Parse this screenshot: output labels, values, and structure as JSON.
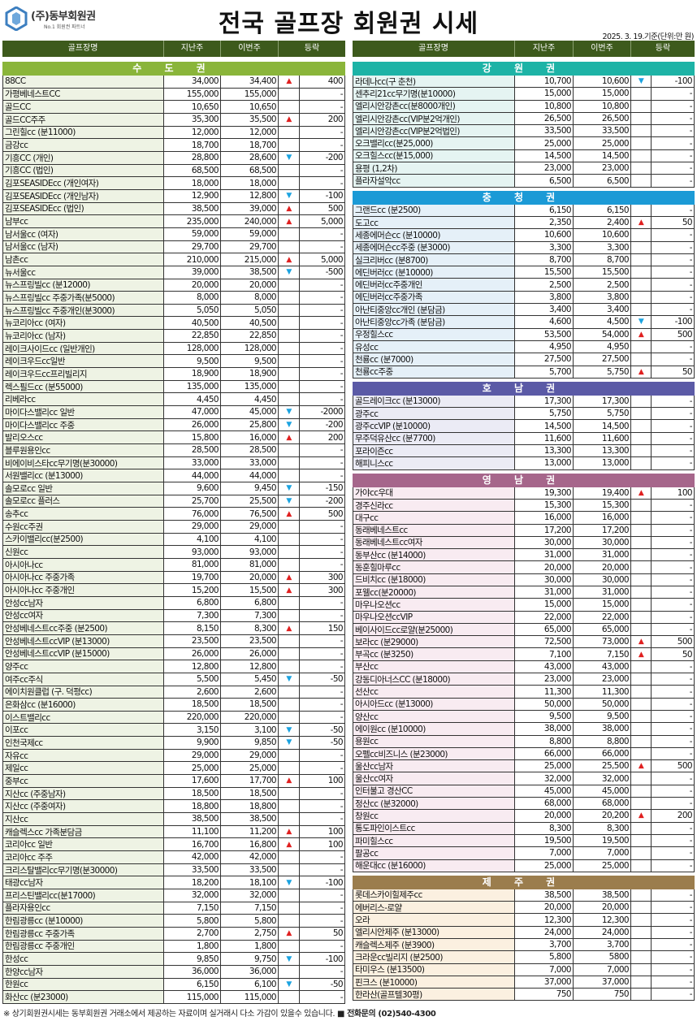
{
  "header": {
    "logo_name": "(주)동부회원권",
    "logo_tagline": "No.1 회원권 파트너",
    "title": "전국 골프장 회원권 시세",
    "date_note": "2025. 3. 19.기준(단위:만 원)"
  },
  "columns": [
    "골프장명",
    "지난주",
    "이번주",
    "등락"
  ],
  "colors": {
    "header": "#3d5a1c",
    "up": "#e02020",
    "down": "#1ba3e0"
  },
  "left_sections": [
    {
      "title": "수 도 권",
      "color": "#8ab53a",
      "name_bg": "#eef3e4",
      "rows": [
        [
          "88CC",
          "34,000",
          "34,400",
          "up",
          "400"
        ],
        [
          "가평베네스트CC",
          "155,000",
          "155,000",
          "",
          "-"
        ],
        [
          "골드CC",
          "10,650",
          "10,650",
          "",
          "-"
        ],
        [
          "골드CC주주",
          "35,300",
          "35,500",
          "up",
          "200"
        ],
        [
          "그린힐cc (분11000)",
          "12,000",
          "12,000",
          "",
          "-"
        ],
        [
          "금강cc",
          "18,700",
          "18,700",
          "",
          "-"
        ],
        [
          "기흥CC (개인)",
          "28,800",
          "28,600",
          "down",
          "-200"
        ],
        [
          "기흥CC (법인)",
          "68,500",
          "68,500",
          "",
          "-"
        ],
        [
          "김포SEASIDEcc (개인여자)",
          "18,000",
          "18,000",
          "",
          "-"
        ],
        [
          "김포SEASIDEcc (개인남자)",
          "12,900",
          "12,800",
          "down",
          "-100"
        ],
        [
          "김포SEASIDEcc (법인)",
          "38,500",
          "39,000",
          "up",
          "500"
        ],
        [
          "남부cc",
          "235,000",
          "240,000",
          "up",
          "5,000"
        ],
        [
          "남서울cc (여자)",
          "59,000",
          "59,000",
          "",
          "-"
        ],
        [
          "남서울cc (남자)",
          "29,700",
          "29,700",
          "",
          "-"
        ],
        [
          "남촌cc",
          "210,000",
          "215,000",
          "up",
          "5,000"
        ],
        [
          "뉴서울cc",
          "39,000",
          "38,500",
          "down",
          "-500"
        ],
        [
          "뉴스프링빌cc (분12000)",
          "20,000",
          "20,000",
          "",
          "-"
        ],
        [
          "뉴스프링빌cc 주중가족(분5000)",
          "8,000",
          "8,000",
          "",
          "-"
        ],
        [
          "뉴스프링빌cc 주중개인(분3000)",
          "5,050",
          "5,050",
          "",
          "-"
        ],
        [
          "뉴코리아cc (여자)",
          "40,500",
          "40,500",
          "",
          "-"
        ],
        [
          "뉴코리아cc (남자)",
          "22,850",
          "22,850",
          "",
          "-"
        ],
        [
          "레이크사이드cc (일반개인)",
          "128,000",
          "128,000",
          "",
          "-"
        ],
        [
          "레이크우드cc일반",
          "9,500",
          "9,500",
          "",
          "-"
        ],
        [
          "레이크우드cc프리빌리지",
          "18,900",
          "18,900",
          "",
          "-"
        ],
        [
          "렉스필드cc (분55000)",
          "135,000",
          "135,000",
          "",
          "-"
        ],
        [
          "리베라cc",
          "4,450",
          "4,450",
          "",
          "-"
        ],
        [
          "마이다스밸리cc 일반",
          "47,000",
          "45,000",
          "down",
          "-2000"
        ],
        [
          "마이다스밸리cc 주중",
          "26,000",
          "25,800",
          "down",
          "-200"
        ],
        [
          "발리오스cc",
          "15,800",
          "16,000",
          "up",
          "200"
        ],
        [
          "블루원용인cc",
          "28,500",
          "28,500",
          "",
          "-"
        ],
        [
          "비에이비스타cc무기명(분30000)",
          "33,000",
          "33,000",
          "",
          "-"
        ],
        [
          "서원밸리cc (분13000)",
          "44,000",
          "44,000",
          "",
          "-"
        ],
        [
          "솔모로cc 일반",
          "9,600",
          "9,450",
          "down",
          "-150"
        ],
        [
          "솔모로cc 플러스",
          "25,700",
          "25,500",
          "down",
          "-200"
        ],
        [
          "송추cc",
          "76,000",
          "76,500",
          "up",
          "500"
        ],
        [
          "수원cc주권",
          "29,000",
          "29,000",
          "",
          "-"
        ],
        [
          "스카이밸리cc(분2500)",
          "4,100",
          "4,100",
          "",
          "-"
        ],
        [
          "신원cc",
          "93,000",
          "93,000",
          "",
          "-"
        ],
        [
          "아시아나cc",
          "81,000",
          "81,000",
          "",
          "-"
        ],
        [
          "아시아나cc 주중가족",
          "19,700",
          "20,000",
          "up",
          "300"
        ],
        [
          "아시아나cc 주중개인",
          "15,200",
          "15,500",
          "up",
          "300"
        ],
        [
          "안성cc남자",
          "6,800",
          "6,800",
          "",
          "-"
        ],
        [
          "안성cc여자",
          "7,300",
          "7,300",
          "",
          "-"
        ],
        [
          "안성베네스트cc주중 (분2500)",
          "8,150",
          "8,300",
          "up",
          "150"
        ],
        [
          "안성베네스트ccVIP (분13000)",
          "23,500",
          "23,500",
          "",
          "-"
        ],
        [
          "안성베네스트ccVIP (분15000)",
          "26,000",
          "26,000",
          "",
          "-"
        ],
        [
          "양주cc",
          "12,800",
          "12,800",
          "",
          "-"
        ],
        [
          "여주cc주식",
          "5,500",
          "5,450",
          "down",
          "-50"
        ],
        [
          "에이치원클럽 (구. 덕평cc)",
          "2,600",
          "2,600",
          "",
          "-"
        ],
        [
          "은화삼cc (분16000)",
          "18,500",
          "18,500",
          "",
          "-"
        ],
        [
          "이스트밸리cc",
          "220,000",
          "220,000",
          "",
          "-"
        ],
        [
          "이포cc",
          "3,150",
          "3,100",
          "down",
          "-50"
        ],
        [
          "인천국제cc",
          "9,900",
          "9,850",
          "down",
          "-50"
        ],
        [
          "자유cc",
          "29,000",
          "29,000",
          "",
          "-"
        ],
        [
          "제일cc",
          "25,000",
          "25,000",
          "",
          "-"
        ],
        [
          "중부cc",
          "17,600",
          "17,700",
          "up",
          "100"
        ],
        [
          "지산cc (주중남자)",
          "18,500",
          "18,500",
          "",
          "-"
        ],
        [
          "지산cc (주중여자)",
          "18,800",
          "18,800",
          "",
          "-"
        ],
        [
          "지산cc",
          "38,500",
          "38,500",
          "",
          "-"
        ],
        [
          "캐슬렉스cc 가족분담금",
          "11,100",
          "11,200",
          "up",
          "100"
        ],
        [
          "코리아cc 일반",
          "16,700",
          "16,800",
          "up",
          "100"
        ],
        [
          "코리아cc 주주",
          "42,000",
          "42,000",
          "",
          "-"
        ],
        [
          "크리스탈밸리cc무기명(분30000)",
          "33,500",
          "33,500",
          "",
          "-"
        ],
        [
          "태광cc남자",
          "18,200",
          "18,100",
          "down",
          "-100"
        ],
        [
          "프리스틴밸리cc(분17000)",
          "32,000",
          "32,000",
          "",
          "-"
        ],
        [
          "플라자용인cc",
          "7,150",
          "7,150",
          "",
          "-"
        ],
        [
          "한림광릉cc (분10000)",
          "5,800",
          "5,800",
          "",
          "-"
        ],
        [
          "한림광릉cc 주중가족",
          "2,700",
          "2,750",
          "up",
          "50"
        ],
        [
          "한림광릉cc 주중개인",
          "1,800",
          "1,800",
          "",
          "-"
        ],
        [
          "한성cc",
          "9,850",
          "9,750",
          "down",
          "-100"
        ],
        [
          "한양cc남자",
          "36,000",
          "36,000",
          "",
          "-"
        ],
        [
          "한원cc",
          "6,150",
          "6,100",
          "down",
          "-50"
        ],
        [
          "화산cc (분23000)",
          "115,000",
          "115,000",
          "",
          "-"
        ]
      ]
    }
  ],
  "right_sections": [
    {
      "title": "강 원 권",
      "color": "#1db3a6",
      "name_bg": "#e5f4f2",
      "rows": [
        [
          "라데나cc(구 춘천)",
          "10,700",
          "10,600",
          "down",
          "-100"
        ],
        [
          "센추리21cc무기명(분10000)",
          "15,000",
          "15,000",
          "",
          "-"
        ],
        [
          "엘리시안강촌cc(분8000개인)",
          "10,800",
          "10,800",
          "",
          "-"
        ],
        [
          "엘리시안강촌cc(VIP분2억개인)",
          "26,500",
          "26,500",
          "",
          "-"
        ],
        [
          "엘리시안강촌cc(VIP분2억법인)",
          "33,500",
          "33,500",
          "",
          "-"
        ],
        [
          "오크밸리cc(분25,000)",
          "25,000",
          "25,000",
          "",
          "-"
        ],
        [
          "오크힐스cc(분15,000)",
          "14,500",
          "14,500",
          "",
          "-"
        ],
        [
          "용평 (1,2차)",
          "23,000",
          "23,000",
          "",
          "-"
        ],
        [
          "플라자설악cc",
          "6,500",
          "6,500",
          "",
          "-"
        ]
      ]
    },
    {
      "title": "충 청 권",
      "color": "#1b9ad6",
      "name_bg": "#e5f0f8",
      "rows": [
        [
          "그랜드cc (분2500)",
          "6,150",
          "6,150",
          "",
          "-"
        ],
        [
          "도고cc",
          "2,350",
          "2,400",
          "up",
          "50"
        ],
        [
          "세종에머슨cc (분10000)",
          "10,600",
          "10,600",
          "",
          "-"
        ],
        [
          "세종에머슨cc주중 (분3000)",
          "3,300",
          "3,300",
          "",
          "-"
        ],
        [
          "실크리버cc (분8700)",
          "8,700",
          "8,700",
          "",
          "-"
        ],
        [
          "에딘버러cc (분10000)",
          "15,500",
          "15,500",
          "",
          "-"
        ],
        [
          "에딘버러cc주중개인",
          "2,500",
          "2,500",
          "",
          "-"
        ],
        [
          "에딘버러cc주중가족",
          "3,800",
          "3,800",
          "",
          "-"
        ],
        [
          "아난티중앙cc개인 (분담금)",
          "3,400",
          "3,400",
          "",
          "-"
        ],
        [
          "아난티중앙cc가족 (분담금)",
          "4,600",
          "4,500",
          "down",
          "-100"
        ],
        [
          "우정힐스cc",
          "53,500",
          "54,000",
          "up",
          "500"
        ],
        [
          "유성cc",
          "4,950",
          "4,950",
          "",
          "-"
        ],
        [
          "천룡cc (분7000)",
          "27,500",
          "27,500",
          "",
          "-"
        ],
        [
          "천룡cc주중",
          "5,700",
          "5,750",
          "up",
          "50"
        ]
      ]
    },
    {
      "title": "호 남 권",
      "color": "#5b5aa6",
      "name_bg": "#ebebf5",
      "rows": [
        [
          "골드레이크cc (분13000)",
          "17,300",
          "17,300",
          "",
          "-"
        ],
        [
          "광주cc",
          "5,750",
          "5,750",
          "",
          "-"
        ],
        [
          "광주ccVIP (분10000)",
          "14,500",
          "14,500",
          "",
          "-"
        ],
        [
          "무주덕유산cc (분7700)",
          "11,600",
          "11,600",
          "",
          "-"
        ],
        [
          "포라이즌cc",
          "13,300",
          "13,300",
          "",
          "-"
        ],
        [
          "해피니스cc",
          "13,000",
          "13,000",
          "",
          "-"
        ]
      ]
    },
    {
      "title": "영 남 권",
      "color": "#a6668b",
      "name_bg": "#f8ebf1",
      "rows": [
        [
          "가야cc우대",
          "19,300",
          "19,400",
          "up",
          "100"
        ],
        [
          "경주신라cc",
          "15,300",
          "15,300",
          "",
          "-"
        ],
        [
          "대구cc",
          "16,000",
          "16,000",
          "",
          "-"
        ],
        [
          "동래베네스트cc",
          "17,200",
          "17,200",
          "",
          "-"
        ],
        [
          "동래베네스트cc여자",
          "30,000",
          "30,000",
          "",
          "-"
        ],
        [
          "동부산cc (분14000)",
          "31,000",
          "31,000",
          "",
          "-"
        ],
        [
          "동훈힐마루cc",
          "20,000",
          "20,000",
          "",
          "-"
        ],
        [
          "드비치cc (분18000)",
          "30,000",
          "30,000",
          "",
          "-"
        ],
        [
          "포웰cc(분20000)",
          "31,000",
          "31,000",
          "",
          "-"
        ],
        [
          "마우나오션cc",
          "15,000",
          "15,000",
          "",
          "-"
        ],
        [
          "마우나오션ccVIP",
          "22,000",
          "22,000",
          "",
          "-"
        ],
        [
          "베이사이드cc로얄(분25000)",
          "65,000",
          "65,000",
          "",
          "-"
        ],
        [
          "보라cc (분29000)",
          "72,500",
          "73,000",
          "up",
          "500"
        ],
        [
          "부곡cc (분3250)",
          "7,100",
          "7,150",
          "up",
          "50"
        ],
        [
          "부산cc",
          "43,000",
          "43,000",
          "",
          "-"
        ],
        [
          "강동디아너스CC (분18000)",
          "23,000",
          "23,000",
          "",
          "-"
        ],
        [
          "선산cc",
          "11,300",
          "11,300",
          "",
          "-"
        ],
        [
          "아시아드cc (분13000)",
          "50,000",
          "50,000",
          "",
          "-"
        ],
        [
          "양산cc",
          "9,500",
          "9,500",
          "",
          "-"
        ],
        [
          "에이원cc (분10000)",
          "38,000",
          "38,000",
          "",
          "-"
        ],
        [
          "용원cc",
          "8,800",
          "8,800",
          "",
          "-"
        ],
        [
          "오펠cc비즈니스 (분23000)",
          "66,000",
          "66,000",
          "",
          "-"
        ],
        [
          "울산cc남자",
          "25,000",
          "25,500",
          "up",
          "500"
        ],
        [
          "울산cc여자",
          "32,000",
          "32,000",
          "",
          "-"
        ],
        [
          "인터불고 경산CC",
          "45,000",
          "45,000",
          "",
          "-"
        ],
        [
          "정산cc (분32000)",
          "68,000",
          "68,000",
          "",
          "-"
        ],
        [
          "창원cc",
          "20,000",
          "20,200",
          "up",
          "200"
        ],
        [
          "통도파인이스트cc",
          "8,300",
          "8,300",
          "",
          "-"
        ],
        [
          "파미힐스cc",
          "19,500",
          "19,500",
          "",
          "-"
        ],
        [
          "팔공cc",
          "7,000",
          "7,000",
          "",
          "-"
        ],
        [
          "해운대cc (분16000)",
          "25,000",
          "25,000",
          "",
          "-"
        ]
      ]
    },
    {
      "title": "제 주 권",
      "color": "#9b7d4d",
      "name_bg": "#fbf0e0",
      "rows": [
        [
          "롯데스카이힐제주cc",
          "38,500",
          "38,500",
          "",
          "-"
        ],
        [
          "에버리스-로얄",
          "20,000",
          "20,000",
          "",
          "-"
        ],
        [
          "오라",
          "12,300",
          "12,300",
          "",
          "-"
        ],
        [
          "엘리시안제주 (분13000)",
          "24,000",
          "24,000",
          "",
          "-"
        ],
        [
          "캐슬렉스제주 (분3900)",
          "3,700",
          "3,700",
          "",
          "-"
        ],
        [
          "크라운cc빌리지 (분2500)",
          "5,800",
          "5800",
          "",
          "-"
        ],
        [
          "타미우스 (분13500)",
          "7,000",
          "7,000",
          "",
          "-"
        ],
        [
          "핀크스 (분10000)",
          "37,000",
          "37,000",
          "",
          "-"
        ],
        [
          "한라산(골프텔30평)",
          "750",
          "750",
          "",
          "-"
        ]
      ]
    }
  ],
  "footer": {
    "notice": "※ 상기회원권시세는 동부회원권 거래소에서 제공하는 자료이며 실거래시 다소 가감이 있을수 있습니다.",
    "contact": "■ 전화문의 (02)540-4300"
  }
}
